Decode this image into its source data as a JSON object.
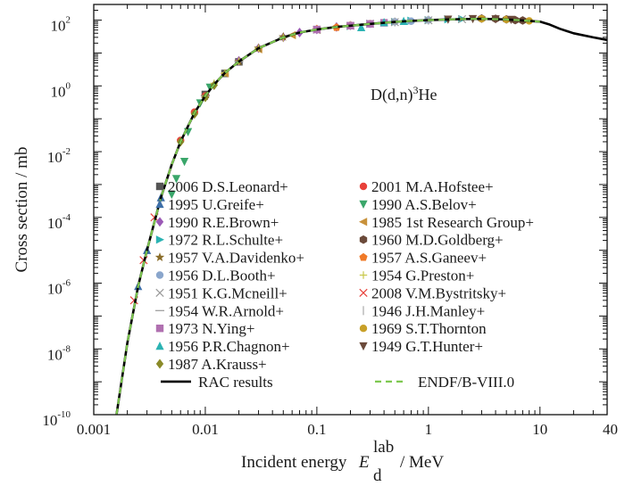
{
  "chart_data": {
    "type": "scatter",
    "xlabel_main": "Incident energy",
    "xlabel_symbol": "E",
    "xlabel_sup": "lab",
    "xlabel_sub": "d",
    "xlabel_unit": "/ MeV",
    "ylabel": "Cross section / mb",
    "xscale": "log",
    "yscale": "log",
    "xlim": [
      0.001,
      40
    ],
    "ylim": [
      1e-10,
      300
    ],
    "x_ticks": [
      {
        "value": 0.001,
        "label": "0.001"
      },
      {
        "value": 0.01,
        "label": "0.01"
      },
      {
        "value": 0.1,
        "label": "0.1"
      },
      {
        "value": 1,
        "label": "1"
      },
      {
        "value": 10,
        "label": "10"
      },
      {
        "value": 40,
        "label": "40"
      }
    ],
    "y_ticks": [
      {
        "value": 1e-10,
        "mantissa": "10",
        "exp": "-10"
      },
      {
        "value": 1e-08,
        "mantissa": "10",
        "exp": "-8"
      },
      {
        "value": 1e-06,
        "mantissa": "10",
        "exp": "-6"
      },
      {
        "value": 0.0001,
        "mantissa": "10",
        "exp": "-4"
      },
      {
        "value": 0.01,
        "mantissa": "10",
        "exp": "-2"
      },
      {
        "value": 1,
        "mantissa": "10",
        "exp": "0"
      },
      {
        "value": 100,
        "mantissa": "10",
        "exp": "2"
      }
    ],
    "grid": false,
    "annotation": {
      "pre": "D(d,n)",
      "sup": "3",
      "post": "He"
    },
    "curves": [
      {
        "name": "RAC results",
        "color": "#000000",
        "style": "solid",
        "x": [
          0.0016,
          0.002,
          0.0025,
          0.003,
          0.004,
          0.005,
          0.006,
          0.007,
          0.008,
          0.01,
          0.012,
          0.015,
          0.02,
          0.03,
          0.05,
          0.07,
          0.1,
          0.15,
          0.2,
          0.3,
          0.5,
          0.7,
          1,
          1.5,
          2,
          3,
          5,
          7,
          10,
          12,
          15,
          20,
          30,
          40
        ],
        "y": [
          1e-10,
          1.5e-08,
          8e-07,
          1e-05,
          0.0004,
          0.004,
          0.02,
          0.06,
          0.15,
          0.5,
          1.1,
          2.5,
          5.5,
          14,
          30,
          42,
          52,
          62,
          68,
          77,
          88,
          95,
          100,
          105,
          108,
          110,
          105,
          98,
          90,
          75,
          55,
          40,
          30,
          25
        ]
      },
      {
        "name": "ENDF/B-VIII.0",
        "color": "#7ec850",
        "style": "dashed",
        "x": [
          0.0016,
          0.002,
          0.0025,
          0.003,
          0.004,
          0.005,
          0.006,
          0.007,
          0.008,
          0.01,
          0.012,
          0.015,
          0.02,
          0.03,
          0.05,
          0.07,
          0.1,
          0.15,
          0.2,
          0.3,
          0.5,
          0.7,
          1,
          1.5,
          2,
          3,
          5,
          7,
          10
        ],
        "y": [
          1e-10,
          1.5e-08,
          8e-07,
          1e-05,
          0.0004,
          0.004,
          0.02,
          0.06,
          0.15,
          0.5,
          1.1,
          2.5,
          5.5,
          14,
          30,
          42,
          52,
          62,
          68,
          77,
          88,
          95,
          100,
          105,
          108,
          110,
          105,
          98,
          90
        ]
      }
    ],
    "series": [
      {
        "name": "2006 D.S.Leonard+",
        "marker": "square",
        "color": "#555555",
        "x": [
          0.01,
          0.015,
          0.02
        ],
        "y": [
          0.55,
          2.4,
          5.4
        ]
      },
      {
        "name": "2001 M.A.Hofstee+",
        "marker": "circle",
        "color": "#e8413a",
        "x": [
          0.006,
          0.008,
          0.01
        ],
        "y": [
          0.022,
          0.16,
          0.5
        ]
      },
      {
        "name": "1995 U.Greife+",
        "marker": "triangle-up",
        "color": "#3d6fa8",
        "x": [
          0.0025,
          0.003,
          0.004
        ],
        "y": [
          8e-07,
          1e-05,
          0.0004
        ]
      },
      {
        "name": "1990 A.S.Belov+",
        "marker": "triangle-down",
        "color": "#3aa66a",
        "x": [
          0.005,
          0.0055,
          0.0065,
          0.007,
          0.009,
          0.011
        ],
        "y": [
          0.0005,
          0.0015,
          0.005,
          0.04,
          0.3,
          0.9
        ]
      },
      {
        "name": "1990 R.E.Brown+",
        "marker": "diamond",
        "color": "#9b59b6",
        "x": [
          0.02,
          0.03,
          0.05,
          0.07,
          0.1,
          0.15
        ],
        "y": [
          5.8,
          14,
          30,
          42,
          52,
          62
        ]
      },
      {
        "name": "1985 1st Research Group+",
        "marker": "triangle-left",
        "color": "#c8913a",
        "x": [
          0.015,
          0.03,
          0.06,
          0.1
        ],
        "y": [
          2.4,
          13,
          35,
          50
        ]
      },
      {
        "name": "1972 R.L.Schulte+",
        "marker": "triangle-right",
        "color": "#2bb3b3",
        "x": [
          0.2,
          0.3,
          0.5,
          0.7,
          1.0,
          1.5,
          2.0
        ],
        "y": [
          66,
          77,
          88,
          96,
          100,
          106,
          108
        ]
      },
      {
        "name": "1960 M.D.Goldberg+",
        "marker": "hexagon",
        "color": "#6b4a3a",
        "x": [
          3,
          4,
          5,
          6,
          7
        ],
        "y": [
          112,
          110,
          106,
          100,
          98
        ]
      },
      {
        "name": "1957 V.A.Davidenko+",
        "marker": "star",
        "color": "#8a6d2a",
        "x": [
          0.01,
          0.02,
          0.03,
          0.05
        ],
        "y": [
          0.48,
          5.5,
          14,
          31
        ]
      },
      {
        "name": "1957 A.S.Ganeev+",
        "marker": "pentagon",
        "color": "#f07a28",
        "x": [
          0.1,
          0.15,
          0.2,
          0.3
        ],
        "y": [
          53,
          60,
          70,
          76
        ]
      },
      {
        "name": "1956 D.L.Booth+",
        "marker": "circle",
        "color": "#8aa6cc",
        "x": [
          0.3,
          0.5,
          0.7,
          1.0
        ],
        "y": [
          75,
          89,
          93,
          101
        ]
      },
      {
        "name": "1954 G.Preston+",
        "marker": "plus",
        "color": "#c8c84a",
        "x": [
          0.012,
          0.015,
          0.02,
          0.03,
          0.05
        ],
        "y": [
          1.2,
          2.5,
          5.6,
          14,
          29
        ]
      },
      {
        "name": "1951 K.G.Mcneill+",
        "marker": "cross",
        "color": "#999999",
        "x": [
          0.1,
          0.2,
          0.3,
          0.5,
          1.0,
          2.0
        ],
        "y": [
          51,
          67,
          78,
          87,
          99,
          107
        ]
      },
      {
        "name": "2008 V.M.Bystritsky+",
        "marker": "cross",
        "color": "#e8413a",
        "x": [
          0.0023,
          0.0028,
          0.0035
        ],
        "y": [
          3e-07,
          5e-06,
          0.0001
        ]
      },
      {
        "name": "1954 W.R.Arnold+",
        "marker": "minus",
        "color": "#999999",
        "x": [
          0.01,
          0.02,
          0.05,
          0.1
        ],
        "y": [
          0.5,
          5.5,
          30,
          52
        ]
      },
      {
        "name": "1946 J.H.Manley+",
        "marker": "vline",
        "color": "#aaaaaa",
        "x": [
          0.2,
          0.5,
          1.0
        ],
        "y": [
          68,
          88,
          100
        ]
      },
      {
        "name": "1973 N.Ying+",
        "marker": "square",
        "color": "#b070b0",
        "x": [
          0.1,
          0.2,
          0.3,
          0.4
        ],
        "y": [
          52,
          68,
          77,
          83
        ]
      },
      {
        "name": "1969 S.T.Thornton",
        "marker": "circle",
        "color": "#c8a028",
        "x": [
          3,
          5,
          8
        ],
        "y": [
          110,
          105,
          95
        ]
      },
      {
        "name": "1956 P.R.Chagnon+",
        "marker": "triangle-up",
        "color": "#2bb3b3",
        "x": [
          0.25,
          0.4,
          0.6
        ],
        "y": [
          60,
          85,
          93
        ]
      },
      {
        "name": "1949 G.T.Hunter+",
        "marker": "triangle-down",
        "color": "#6b4a3a",
        "x": [
          1.5,
          2.5,
          4.0,
          5.5
        ],
        "y": [
          106,
          110,
          108,
          104
        ]
      },
      {
        "name": "1987 A.Krauss+",
        "marker": "diamond",
        "color": "#8a8a28",
        "x": [
          0.006,
          0.008,
          0.01,
          0.012
        ],
        "y": [
          0.02,
          0.14,
          0.45,
          1.05
        ]
      }
    ],
    "legend": {
      "placement": "center-bottom",
      "rows": [
        [
          "2006 D.S.Leonard+",
          "2001 M.A.Hofstee+"
        ],
        [
          "1995 U.Greife+",
          "1990 A.S.Belov+"
        ],
        [
          "1990 R.E.Brown+",
          "1985 1st Research Group+"
        ],
        [
          "1972 R.L.Schulte+",
          "1960 M.D.Goldberg+"
        ],
        [
          "1957 V.A.Davidenko+",
          "1957 A.S.Ganeev+"
        ],
        [
          "1956 D.L.Booth+",
          "1954 G.Preston+"
        ],
        [
          "1951 K.G.Mcneill+",
          "2008 V.M.Bystritsky+"
        ],
        [
          "1954 W.R.Arnold+",
          "1946 J.H.Manley+"
        ],
        [
          "1973 N.Ying+",
          "1969 S.T.Thornton"
        ],
        [
          "1956 P.R.Chagnon+",
          "1949 G.T.Hunter+"
        ],
        [
          "1987 A.Krauss+",
          null
        ]
      ],
      "curve_row": [
        "RAC results",
        "ENDF/B-VIII.0"
      ]
    }
  }
}
